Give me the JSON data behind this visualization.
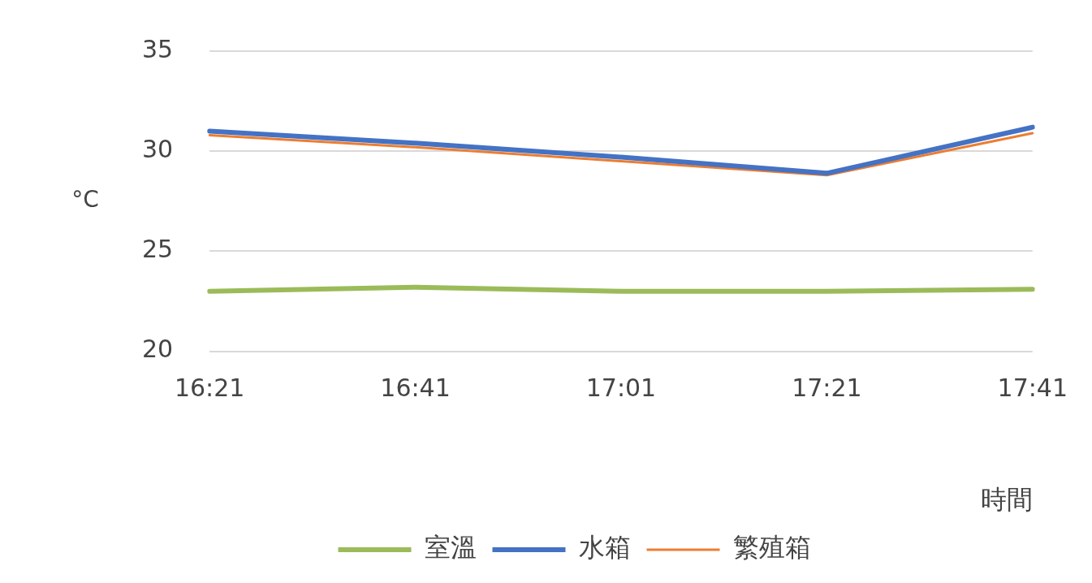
{
  "chart_data": {
    "type": "line",
    "xlabel": "時間",
    "ylabel": "°C",
    "categories": [
      "16:21",
      "16:41",
      "17:01",
      "17:21",
      "17:41"
    ],
    "series": [
      {
        "name": "室溫",
        "color": "#9bbb59",
        "values": [
          23.0,
          23.2,
          23.0,
          23.0,
          23.1
        ]
      },
      {
        "name": "水箱",
        "color": "#4472c4",
        "values": [
          31.0,
          30.4,
          29.7,
          28.9,
          31.2
        ]
      },
      {
        "name": "繁殖箱",
        "color": "#ed7d31",
        "values": [
          30.8,
          30.2,
          29.5,
          28.8,
          30.9
        ]
      }
    ],
    "ylim": [
      20,
      35
    ],
    "yticks": [
      20,
      25,
      30,
      35
    ],
    "grid": "y",
    "legend": "bottom",
    "marker": "none",
    "line_style": "solid"
  }
}
